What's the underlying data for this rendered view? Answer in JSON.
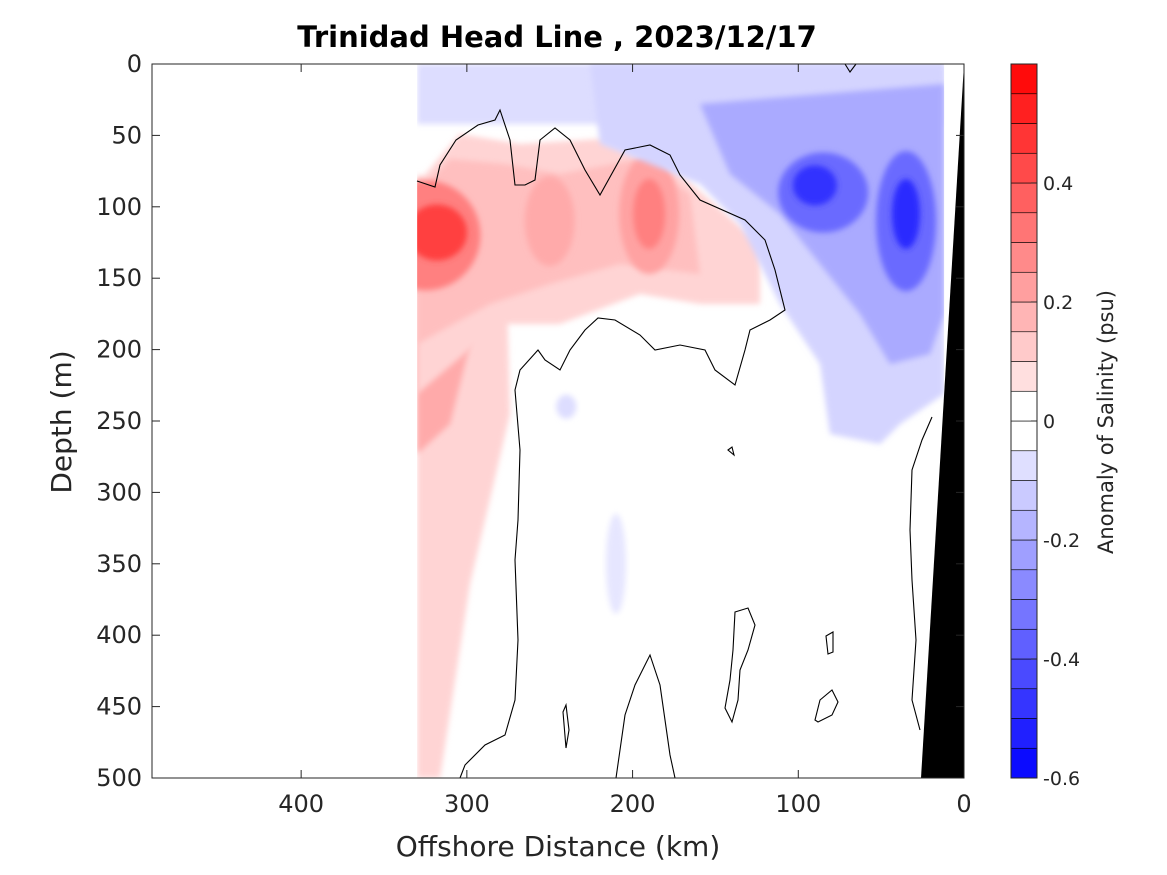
{
  "chart_data": {
    "type": "heatmap",
    "title": "Trinidad Head Line , 2023/12/17",
    "xlabel": "Offshore Distance (km)",
    "ylabel": "Depth (m)",
    "colorbar_label": "Anomaly of Salinity (psu)",
    "xlim": [
      490,
      0
    ],
    "ylim": [
      0,
      500
    ],
    "x_reversed": true,
    "y_reversed": true,
    "x_ticks": [
      400,
      300,
      200,
      100,
      0
    ],
    "y_ticks": [
      0,
      50,
      100,
      150,
      200,
      250,
      300,
      350,
      400,
      450,
      500
    ],
    "colorbar_range": [
      -0.6,
      0.6
    ],
    "colorbar_ticks": [
      0.4,
      0.2,
      0,
      -0.2,
      -0.4,
      -0.6
    ],
    "contour_interval": 0.05,
    "zero_contour": true,
    "data_extent_km": [
      330,
      12
    ],
    "features": [
      {
        "label": "positive anomaly core",
        "x_km": 320,
        "depth_m": 120,
        "value": 0.5
      },
      {
        "label": "positive anomaly",
        "x_km": 250,
        "depth_m": 110,
        "value": 0.2
      },
      {
        "label": "positive anomaly",
        "x_km": 190,
        "depth_m": 105,
        "value": 0.25
      },
      {
        "label": "negative anomaly core",
        "x_km": 90,
        "depth_m": 85,
        "value": -0.45
      },
      {
        "label": "negative anomaly core",
        "x_km": 35,
        "depth_m": 105,
        "value": -0.5
      },
      {
        "label": "weak negative",
        "x_km": 240,
        "depth_m": 240,
        "value": -0.08
      }
    ],
    "colors": {
      "positive_max": "#ff0000",
      "negative_max": "#0000ff",
      "zero": "#ffffff",
      "land": "#000000"
    }
  }
}
